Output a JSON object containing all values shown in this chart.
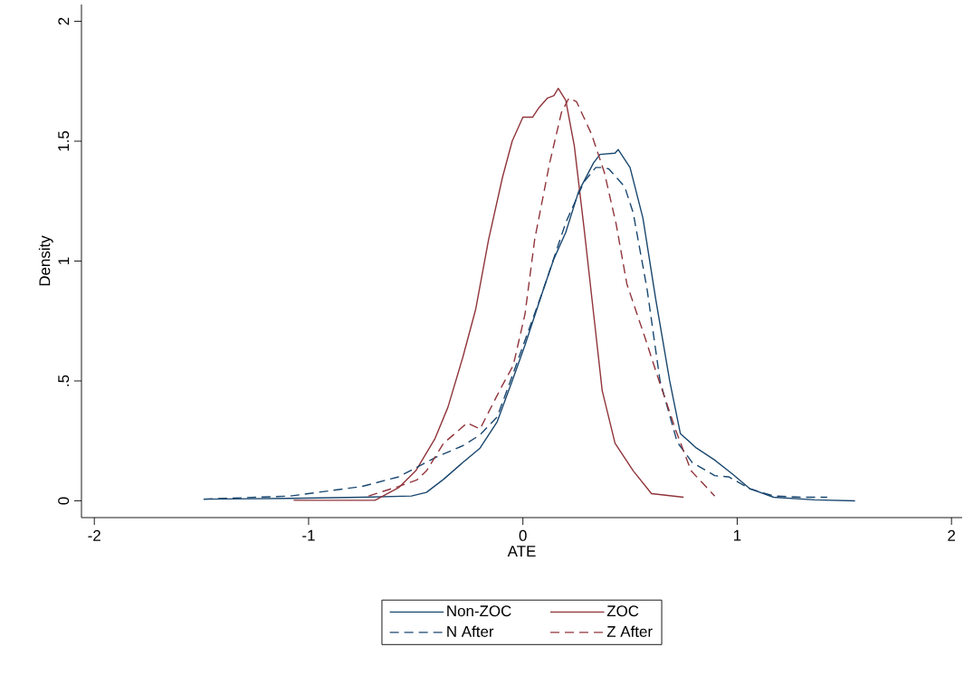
{
  "chart_data": {
    "type": "line",
    "xlabel": "ATE",
    "ylabel": "Density",
    "xlim": [
      -2.06,
      2.05
    ],
    "ylim": [
      -0.07,
      2.07
    ],
    "xticks": [
      -2,
      -1,
      0,
      1,
      2
    ],
    "yticks": [
      0,
      {
        "value": 0.5,
        "label": ".5"
      },
      1,
      1.5,
      2
    ],
    "grid": false,
    "legend": "bottom",
    "marker": "none",
    "series": [
      {
        "name": "Non-ZOC",
        "color": "#1a476f",
        "line_style": "solid",
        "x": [
          -1.49,
          -1.085,
          -0.75,
          -0.52,
          -0.45,
          -0.37,
          -0.28,
          -0.2,
          -0.12,
          -0.05,
          0.01,
          0.095,
          0.145,
          0.2,
          0.26,
          0.33,
          0.36,
          0.43,
          0.445,
          0.5,
          0.56,
          0.62,
          0.685,
          0.735,
          0.81,
          0.895,
          0.98,
          1.06,
          1.17,
          1.36,
          1.55
        ],
        "values": [
          0.007,
          0.01,
          0.015,
          0.02,
          0.035,
          0.09,
          0.16,
          0.22,
          0.33,
          0.5,
          0.65,
          0.88,
          1.01,
          1.12,
          1.29,
          1.41,
          1.445,
          1.45,
          1.465,
          1.39,
          1.18,
          0.84,
          0.5,
          0.28,
          0.22,
          0.17,
          0.11,
          0.05,
          0.015,
          0.004,
          0.0
        ]
      },
      {
        "name": "ZOC",
        "color": "#90353b",
        "line_style": "solid",
        "x": [
          -1.07,
          -0.69,
          -0.58,
          -0.5,
          -0.41,
          -0.35,
          -0.28,
          -0.22,
          -0.16,
          -0.095,
          -0.05,
          0.0,
          0.045,
          0.075,
          0.115,
          0.145,
          0.165,
          0.2,
          0.24,
          0.285,
          0.33,
          0.37,
          0.43,
          0.515,
          0.6,
          0.75
        ],
        "values": [
          0.002,
          0.002,
          0.055,
          0.125,
          0.26,
          0.39,
          0.6,
          0.8,
          1.09,
          1.35,
          1.5,
          1.6,
          1.6,
          1.64,
          1.68,
          1.69,
          1.72,
          1.67,
          1.48,
          1.14,
          0.78,
          0.46,
          0.24,
          0.125,
          0.03,
          0.015
        ]
      },
      {
        "name": "N After",
        "color": "#1a476f",
        "line_style": "dashed",
        "x": [
          -1.49,
          -1.085,
          -0.75,
          -0.58,
          -0.41,
          -0.28,
          -0.2,
          -0.12,
          -0.05,
          0.01,
          0.095,
          0.2,
          0.285,
          0.34,
          0.37,
          0.4,
          0.475,
          0.515,
          0.58,
          0.64,
          0.72,
          0.79,
          0.895,
          0.96,
          1.06,
          1.17,
          1.3,
          1.42
        ],
        "values": [
          0.007,
          0.02,
          0.06,
          0.1,
          0.18,
          0.23,
          0.275,
          0.35,
          0.52,
          0.67,
          0.88,
          1.16,
          1.33,
          1.39,
          1.39,
          1.385,
          1.31,
          1.2,
          0.88,
          0.5,
          0.245,
          0.16,
          0.105,
          0.1,
          0.05,
          0.02,
          0.015,
          0.015
        ]
      },
      {
        "name": "Z After",
        "color": "#90353b",
        "line_style": "dashed",
        "x": [
          -0.72,
          -0.58,
          -0.495,
          -0.45,
          -0.37,
          -0.26,
          -0.2,
          -0.1,
          -0.045,
          0.0,
          0.01,
          0.055,
          0.125,
          0.18,
          0.215,
          0.25,
          0.32,
          0.38,
          0.435,
          0.485,
          0.57,
          0.63,
          0.715,
          0.785,
          0.895
        ],
        "values": [
          0.02,
          0.06,
          0.087,
          0.125,
          0.24,
          0.325,
          0.3,
          0.475,
          0.565,
          0.74,
          0.78,
          1.09,
          1.41,
          1.62,
          1.68,
          1.665,
          1.53,
          1.37,
          1.155,
          0.905,
          0.68,
          0.515,
          0.29,
          0.125,
          0.02
        ]
      }
    ]
  }
}
